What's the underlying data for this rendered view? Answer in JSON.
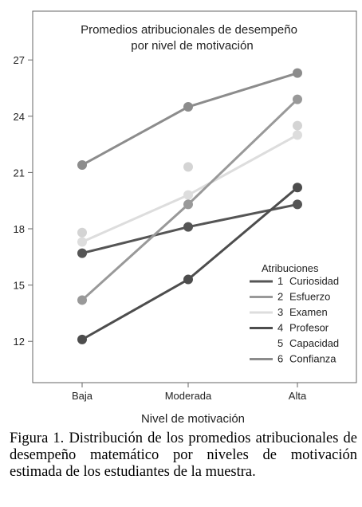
{
  "chart_data": {
    "type": "line",
    "title_lines": [
      "Promedios atribucionales de desempeño",
      "por nivel de motivación"
    ],
    "xlabel": "Nivel de motivación",
    "ylabel": "",
    "categories": [
      "Baja",
      "Moderada",
      "Alta"
    ],
    "ylim": [
      9.8,
      29.6
    ],
    "yticks": [
      12,
      15,
      18,
      21,
      24,
      27
    ],
    "legend_title": "Atribuciones",
    "legend_position": "bottom-right",
    "series": [
      {
        "number": "1",
        "name": "Curiosidad",
        "color": "#555555",
        "values": [
          16.7,
          18.1,
          19.3
        ]
      },
      {
        "number": "2",
        "name": "Esfuerzo",
        "color": "#999999",
        "values": [
          14.2,
          19.3,
          24.9
        ]
      },
      {
        "number": "3",
        "name": "Examen",
        "color": "#dddddd",
        "values": [
          17.3,
          19.8,
          23.0
        ]
      },
      {
        "number": "4",
        "name": "Profesor",
        "color": "#4d4d4d",
        "values": [
          12.1,
          15.3,
          20.2
        ]
      },
      {
        "number": "5",
        "name": "Capacidad",
        "color": "#d4d4d4",
        "values": [
          17.8,
          21.3,
          23.5
        ],
        "line": false
      },
      {
        "number": "6",
        "name": "Confianza",
        "color": "#8c8c8c",
        "values": [
          21.4,
          24.5,
          26.3
        ]
      }
    ]
  },
  "caption": "Figura 1. Distribución de los promedios atribucionales de desempeño matemático por niveles de motivación estimada de los estudiantes de la muestra."
}
